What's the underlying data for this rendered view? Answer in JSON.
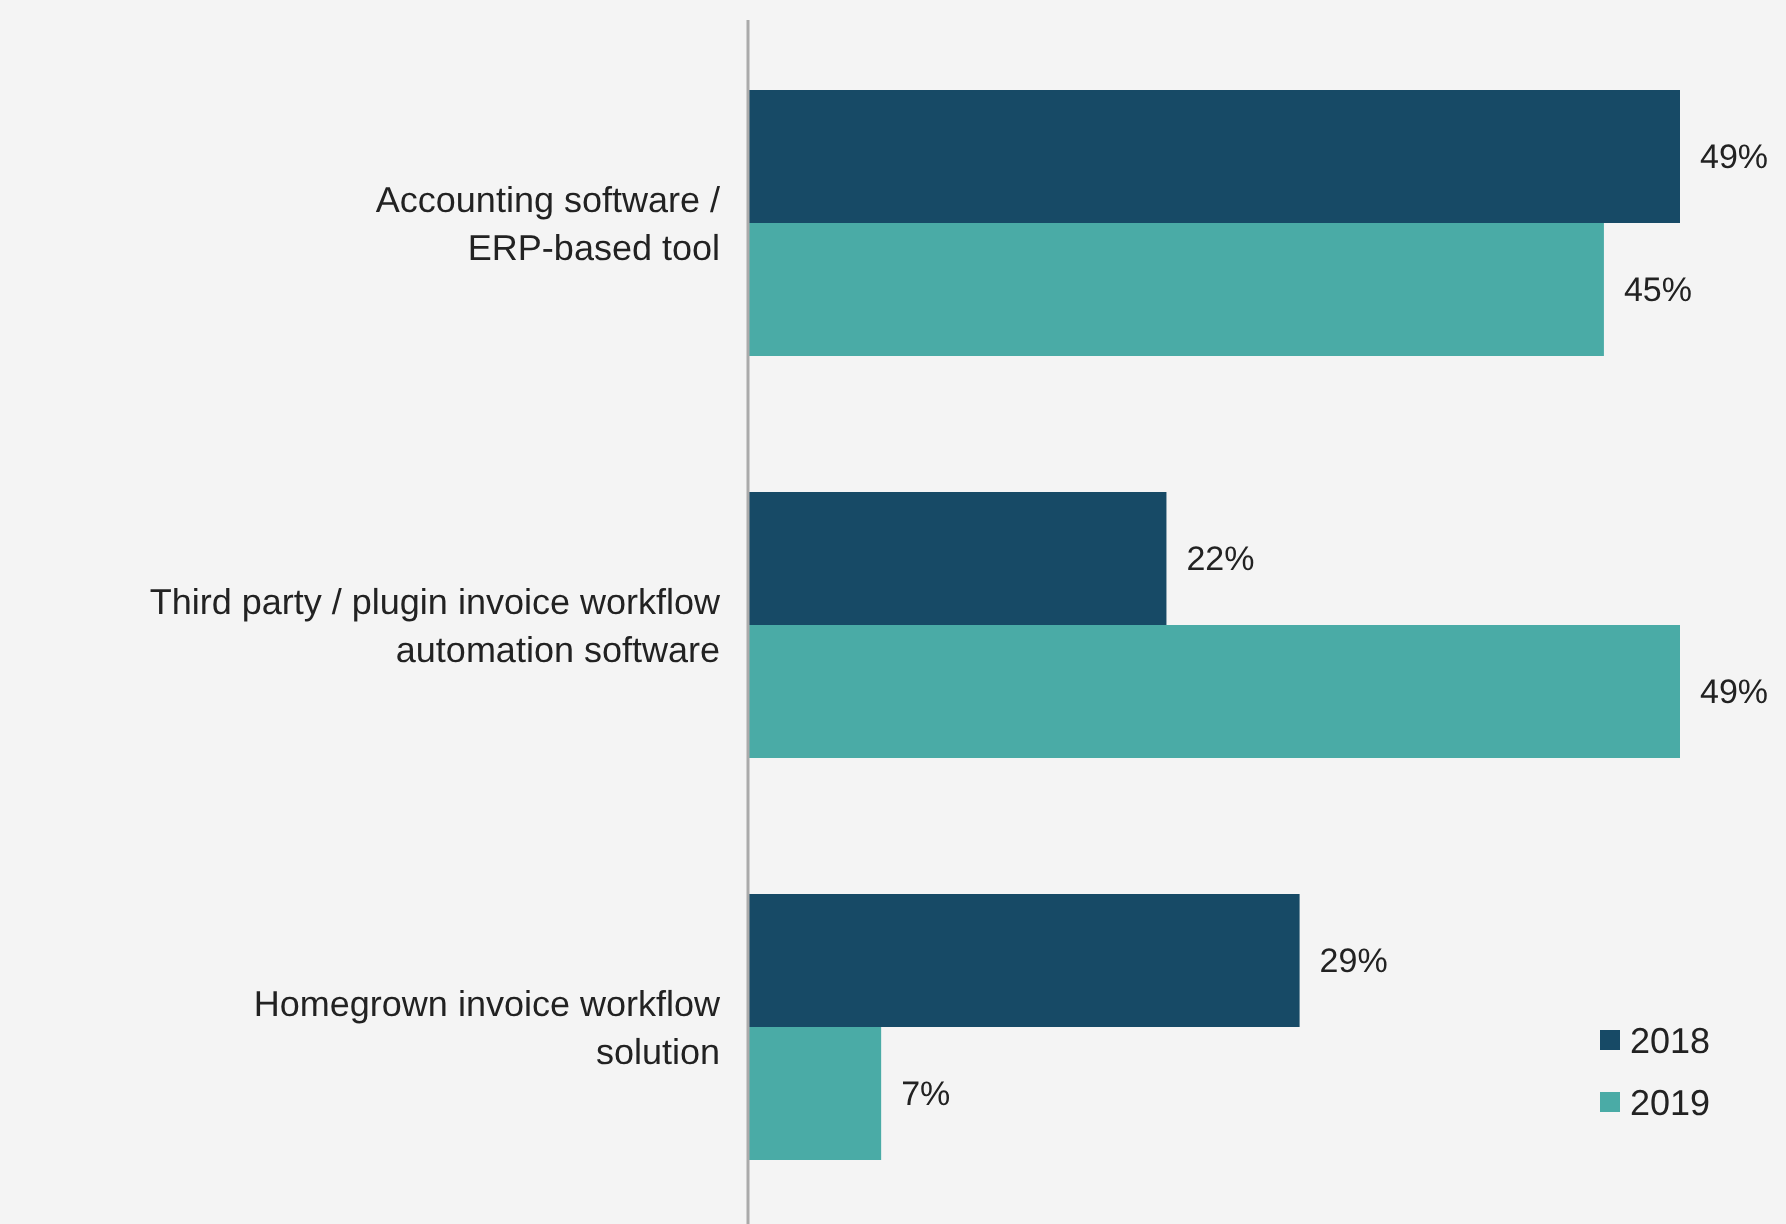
{
  "chart_data": {
    "type": "bar",
    "orientation": "horizontal",
    "categories": [
      "Accounting software /\nERP-based tool",
      "Third party / plugin invoice workflow\nautomation software",
      "Homegrown invoice workflow\nsolution"
    ],
    "series": [
      {
        "name": "2018",
        "color": "#174a66",
        "values": [
          49,
          22,
          29
        ],
        "value_labels": [
          "49%",
          "22%",
          "29%"
        ]
      },
      {
        "name": "2019",
        "color": "#4aaba6",
        "values": [
          45,
          49,
          7
        ],
        "value_labels": [
          "45%",
          "49%",
          "7%"
        ]
      }
    ],
    "legend": "bottom right"
  }
}
